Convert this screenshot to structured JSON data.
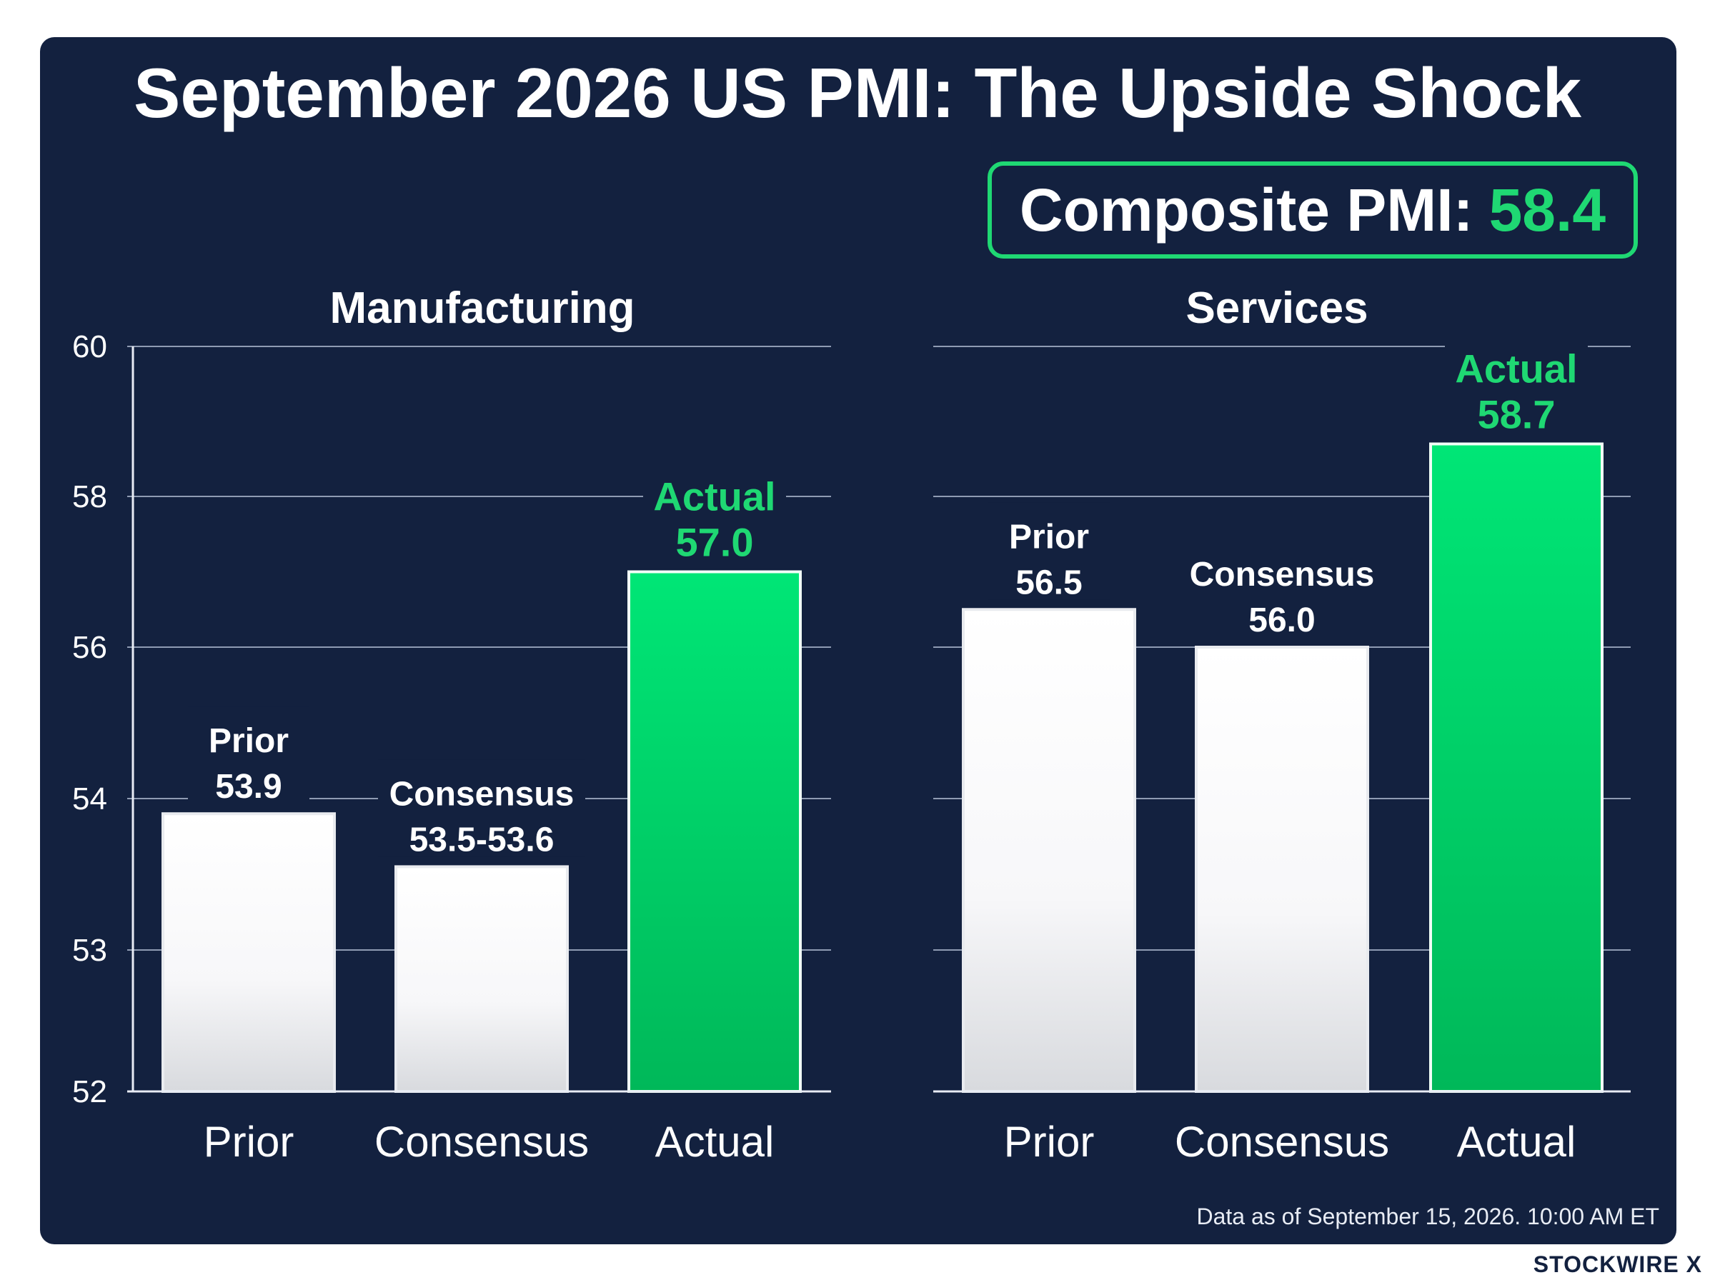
{
  "title": "September 2026 US PMI: The Upside Shock",
  "composite": {
    "label": "Composite PMI:",
    "value": "58.4"
  },
  "footer": {
    "note": "Data as of September 15, 2026. 10:00 AM ET",
    "brand": "STOCKWIRE X"
  },
  "colors": {
    "background": "#13213f",
    "accent": "#1fd873",
    "bar_neutral": "#ffffff",
    "text": "#ffffff"
  },
  "chart_data": [
    {
      "type": "bar",
      "title": "Manufacturing",
      "categories": [
        "Prior",
        "Consensus",
        "Actual"
      ],
      "values": [
        53.9,
        53.55,
        57.0
      ],
      "labels": [
        {
          "name": "Prior",
          "value": "53.9"
        },
        {
          "name": "Consensus",
          "value": "53.5-53.6"
        },
        {
          "name": "Actual",
          "value": "57.0"
        }
      ],
      "highlight": "Actual",
      "yticks": [
        60,
        58,
        56,
        54,
        53,
        52
      ],
      "ylim": [
        52,
        60
      ],
      "grid": true
    },
    {
      "type": "bar",
      "title": "Services",
      "categories": [
        "Prior",
        "Consensus",
        "Actual"
      ],
      "values": [
        56.5,
        56.0,
        58.7
      ],
      "labels": [
        {
          "name": "Prior",
          "value": "56.5"
        },
        {
          "name": "Consensus",
          "value": "56.0"
        },
        {
          "name": "Actual",
          "value": "58.7"
        }
      ],
      "highlight": "Actual",
      "ylim": [
        52,
        60
      ],
      "grid": true
    }
  ]
}
